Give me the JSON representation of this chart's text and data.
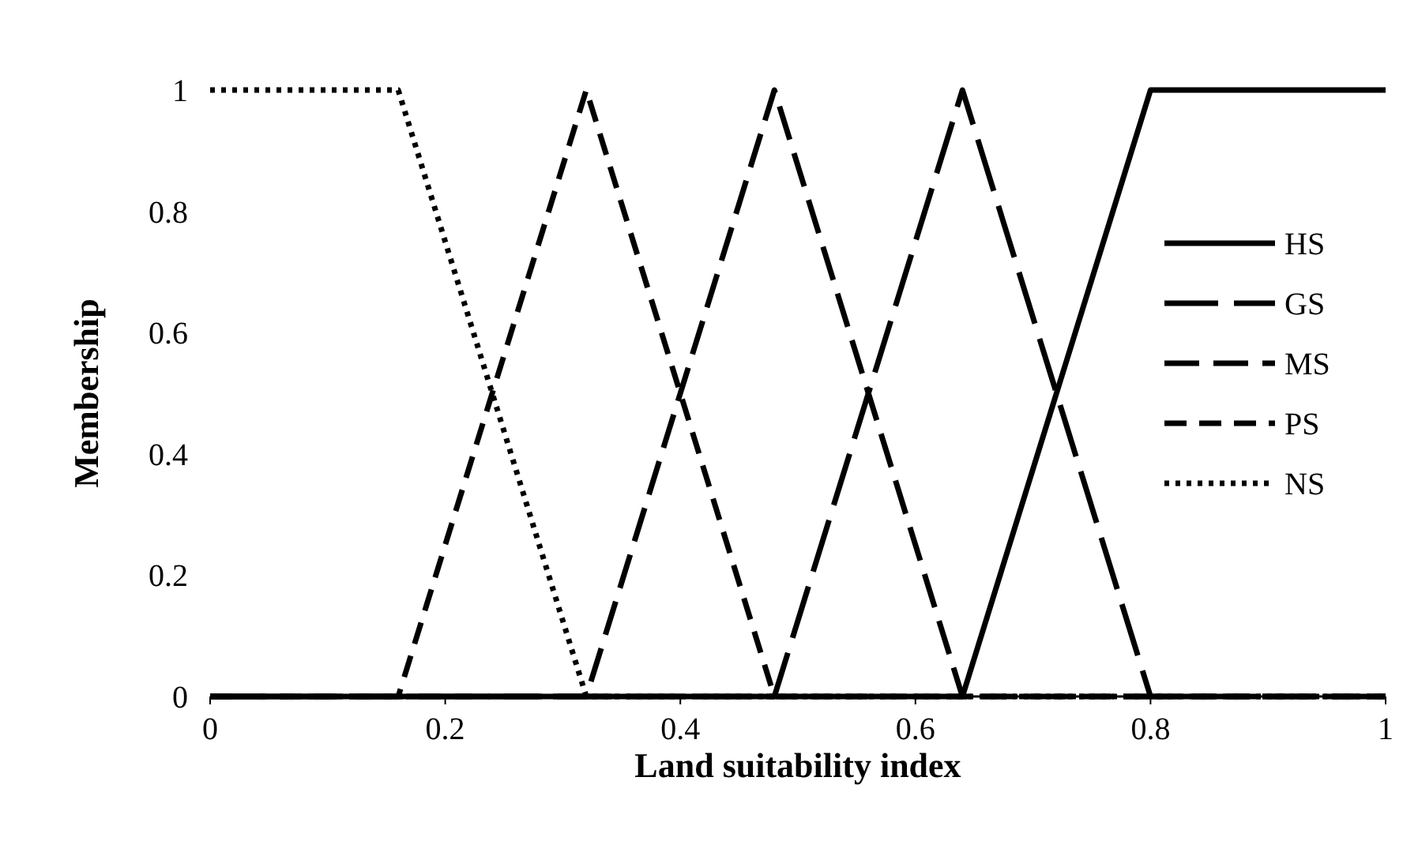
{
  "chart_data": {
    "type": "line",
    "xlabel": "Land suitability index",
    "ylabel": "Membership",
    "xlim": [
      0,
      1
    ],
    "xticks": [
      0,
      0.2,
      0.4,
      0.6,
      0.8,
      1
    ],
    "ylim": [
      0,
      1
    ],
    "yticks": [
      0,
      0.2,
      0.4,
      0.6,
      0.8,
      1
    ],
    "grid": false,
    "legend": "right",
    "marker": "none",
    "series": [
      {
        "name": "HS",
        "color": "#000000",
        "line_style": "solid",
        "x": [
          0,
          0.64,
          0.8,
          1
        ],
        "values": [
          0,
          0,
          1,
          1
        ]
      },
      {
        "name": "GS",
        "color": "#000000",
        "line_style": "dashed",
        "x": [
          0,
          0.48,
          0.64,
          0.8,
          1
        ],
        "values": [
          0,
          0,
          1,
          0,
          0
        ]
      },
      {
        "name": "MS",
        "color": "#000000",
        "line_style": "dashed",
        "x": [
          0,
          0.32,
          0.48,
          0.64,
          1
        ],
        "values": [
          0,
          0,
          1,
          0,
          0
        ]
      },
      {
        "name": "PS",
        "color": "#000000",
        "line_style": "dashed",
        "x": [
          0,
          0.16,
          0.32,
          0.48,
          1
        ],
        "values": [
          0,
          0,
          1,
          0,
          0
        ]
      },
      {
        "name": "NS",
        "color": "#000000",
        "line_style": "dotted",
        "x": [
          0,
          0.16,
          0.32,
          1
        ],
        "values": [
          1,
          1,
          0,
          0
        ]
      }
    ]
  }
}
